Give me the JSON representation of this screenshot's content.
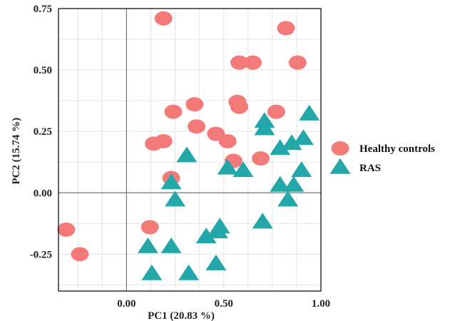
{
  "chart_data": {
    "type": "scatter",
    "xlabel": "PC1 (20.83 %)",
    "ylabel": "PC2 (15.74 %)",
    "xlim": [
      -0.35,
      1.0
    ],
    "ylim": [
      -0.4,
      0.75
    ],
    "xticks": [
      0.0,
      0.5,
      1.0
    ],
    "xtick_labels": [
      "0.00",
      "0.50",
      "1.00"
    ],
    "yticks": [
      -0.25,
      0.0,
      0.25,
      0.5,
      0.75
    ],
    "ytick_labels": [
      "-0.25",
      "0.00",
      "0.25",
      "0.50",
      "0.75"
    ],
    "grid": true,
    "legend_position": "right",
    "series": [
      {
        "name": "Healthy controls",
        "marker": "ellipse",
        "color": "#f47a7a",
        "points": [
          [
            0.19,
            0.71
          ],
          [
            0.82,
            0.67
          ],
          [
            0.58,
            0.53
          ],
          [
            0.65,
            0.53
          ],
          [
            0.88,
            0.53
          ],
          [
            0.24,
            0.33
          ],
          [
            0.35,
            0.36
          ],
          [
            0.57,
            0.37
          ],
          [
            0.58,
            0.35
          ],
          [
            0.77,
            0.33
          ],
          [
            0.36,
            0.27
          ],
          [
            0.46,
            0.24
          ],
          [
            0.52,
            0.21
          ],
          [
            0.14,
            0.2
          ],
          [
            0.19,
            0.21
          ],
          [
            0.55,
            0.13
          ],
          [
            0.69,
            0.14
          ],
          [
            0.23,
            0.06
          ],
          [
            0.12,
            -0.14
          ],
          [
            -0.31,
            -0.15
          ],
          [
            -0.24,
            -0.25
          ]
        ]
      },
      {
        "name": "RAS",
        "marker": "triangle",
        "color": "#24a7a8",
        "points": [
          [
            0.94,
            0.32
          ],
          [
            0.71,
            0.29
          ],
          [
            0.71,
            0.26
          ],
          [
            0.91,
            0.22
          ],
          [
            0.85,
            0.2
          ],
          [
            0.79,
            0.18
          ],
          [
            0.31,
            0.15
          ],
          [
            0.52,
            0.1
          ],
          [
            0.6,
            0.09
          ],
          [
            0.9,
            0.09
          ],
          [
            0.23,
            0.04
          ],
          [
            0.79,
            0.03
          ],
          [
            0.86,
            0.03
          ],
          [
            0.25,
            -0.03
          ],
          [
            0.83,
            -0.03
          ],
          [
            0.7,
            -0.12
          ],
          [
            0.48,
            -0.14
          ],
          [
            0.47,
            -0.16
          ],
          [
            0.41,
            -0.18
          ],
          [
            0.11,
            -0.22
          ],
          [
            0.23,
            -0.22
          ],
          [
            0.46,
            -0.29
          ],
          [
            0.13,
            -0.33
          ],
          [
            0.32,
            -0.33
          ]
        ]
      }
    ]
  }
}
